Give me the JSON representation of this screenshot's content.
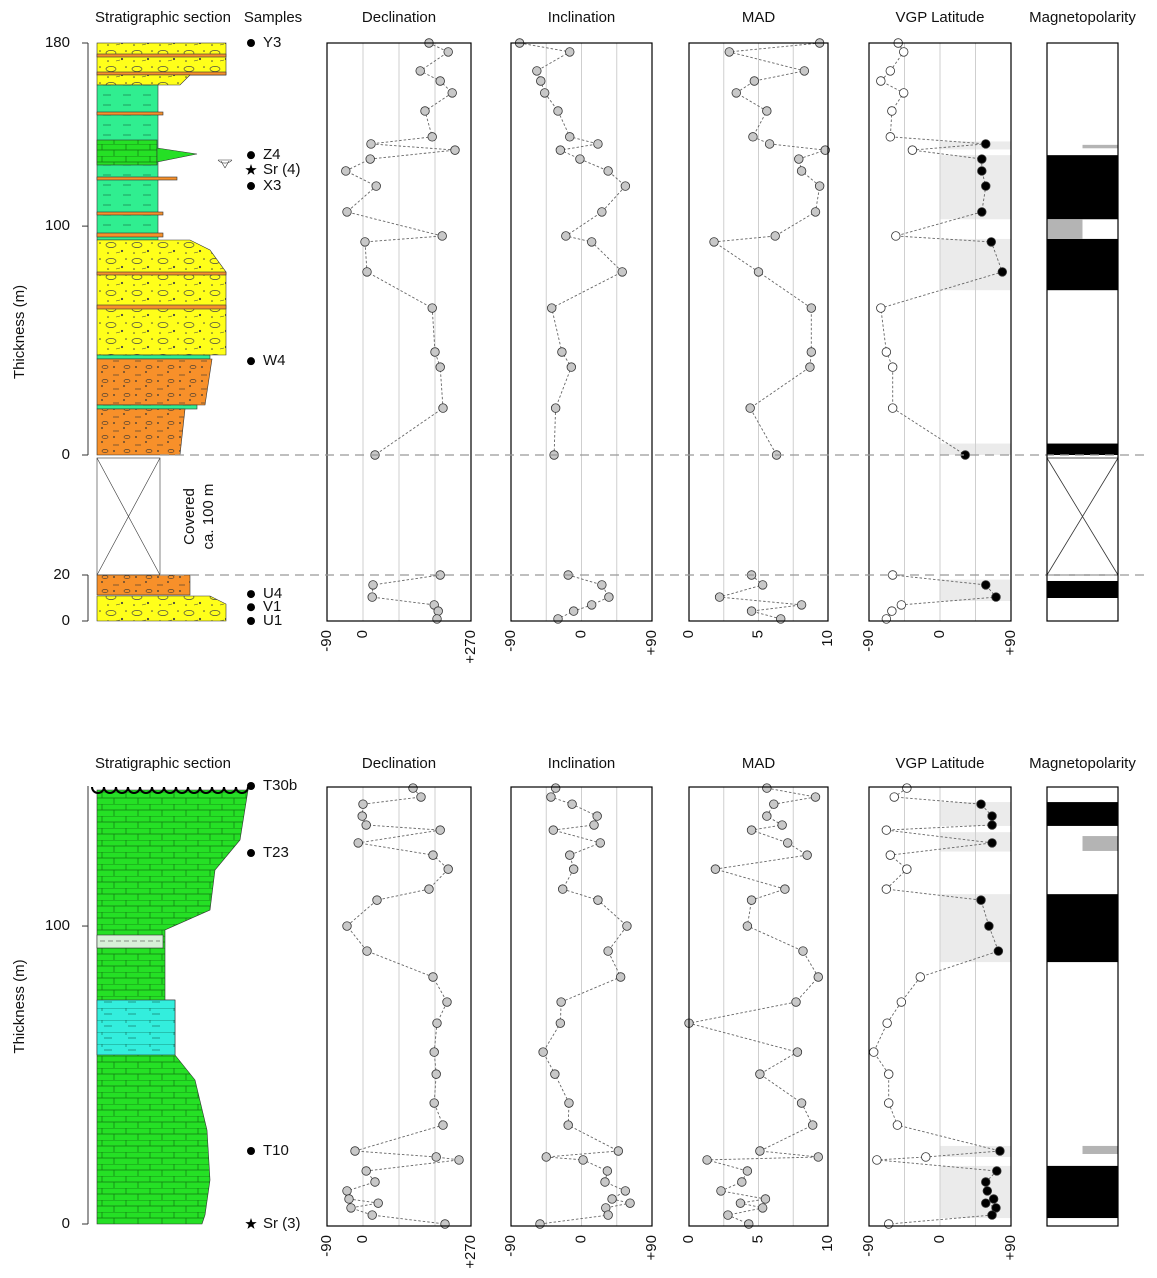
{
  "chart_data": [
    {
      "type": "paleomag",
      "section_title": "Stratigraphic section",
      "samples_title": "Samples",
      "ylabel": "Thickness (m)",
      "covered_label": [
        "Covered",
        "ca. 100 m"
      ],
      "samples": [
        {
          "name": "Y3",
          "thickness": 180,
          "segment": 0,
          "marker": "dot"
        },
        {
          "name": "Z4",
          "thickness": 131,
          "segment": 0,
          "marker": "dot"
        },
        {
          "name": "Sr (4)",
          "thickness": 124.5,
          "segment": 0,
          "marker": "star"
        },
        {
          "name": "X3",
          "thickness": 117.5,
          "segment": 0,
          "marker": "dot"
        },
        {
          "name": "W4",
          "thickness": 41,
          "segment": 0,
          "marker": "dot"
        },
        {
          "name": "U4",
          "thickness": 11.7,
          "segment": 1,
          "marker": "dot"
        },
        {
          "name": "V1",
          "thickness": 6,
          "segment": 1,
          "marker": "dot"
        },
        {
          "name": "U1",
          "thickness": 0,
          "segment": 1,
          "marker": "dot"
        }
      ],
      "columns": [
        {
          "title": "Declination",
          "xlim": [
            -90,
            270
          ],
          "xticks": [
            -90,
            0,
            {
              "value": 270,
              "label": "+270"
            }
          ],
          "xgrid": [
            0,
            90,
            180
          ],
          "marker": "gray"
        },
        {
          "title": "Inclination",
          "xlim": [
            -90,
            90
          ],
          "xticks": [
            -90,
            0,
            {
              "value": 90,
              "label": "+90"
            }
          ],
          "xgrid": [
            -45,
            0,
            45
          ],
          "marker": "gray"
        },
        {
          "title": "MAD",
          "xlim": [
            0,
            10
          ],
          "xticks": [
            0,
            5,
            10
          ],
          "xgrid": [
            2.5,
            5,
            7.5
          ],
          "marker": "gray"
        },
        {
          "title": "VGP Latitude",
          "xlim": [
            -90,
            90
          ],
          "xticks": [
            -90,
            0,
            {
              "value": 90,
              "label": "+90"
            }
          ],
          "xgrid": [
            -45,
            0,
            45
          ],
          "marker": "sign"
        }
      ],
      "polarity_title": "Magnetopolarity",
      "axes": [
        {
          "ylim": [
            0,
            180
          ],
          "yticks": [
            0,
            100,
            180
          ],
          "thickness": [
            180,
            176.1,
            167.8,
            163.4,
            158.2,
            150.3,
            139,
            135.9,
            133.2,
            129.3,
            124.1,
            117.5,
            106.2,
            95.7,
            93.1,
            80,
            64.2,
            45,
            38.4,
            20.5,
            0
          ],
          "values": [
            [
              165,
              213,
              143,
              193,
              223,
              155,
              173,
              20,
              230,
              18,
              -43,
              33,
              -40,
              198,
              5,
              10,
              173,
              180,
              193,
              200,
              30
            ],
            [
              -79,
              -15,
              -57,
              -52,
              -47,
              -30,
              -15,
              21,
              -27,
              -2,
              34,
              56,
              26,
              -20,
              13,
              52,
              -38,
              -25,
              -13,
              -33,
              -35
            ],
            [
              9.4,
              2.9,
              8.3,
              4.7,
              3.4,
              5.6,
              4.6,
              5.8,
              9.8,
              7.9,
              8.1,
              9.4,
              9.1,
              6.2,
              1.8,
              5,
              8.8,
              8.8,
              8.7,
              4.4,
              6.3
            ],
            [
              -53,
              -46,
              -63,
              -75,
              -46,
              -61,
              -63,
              58,
              -35,
              53,
              53,
              58,
              53,
              -56,
              65,
              79,
              -75,
              -68,
              -60,
              -60,
              32
            ]
          ],
          "vgp_bands": [
            [
              137,
              133.5
            ],
            [
              131,
              103
            ],
            [
              94.4,
              72
            ],
            [
              5,
              0
            ]
          ],
          "normal": [
            [
              131,
              103
            ],
            [
              94.4,
              72
            ],
            [
              5,
              0
            ]
          ],
          "uncertain": [
            {
              "range": [
                135.5,
                134
              ],
              "side": "right"
            },
            {
              "range": [
                103,
                94.4
              ],
              "side": "left"
            }
          ]
        },
        {
          "ylim": [
            0,
            20
          ],
          "yticks": [
            0,
            20
          ],
          "thickness": [
            20,
            15.7,
            10.4,
            7,
            4.3,
            0.9
          ],
          "values": [
            [
              193,
              25,
              23,
              178,
              188,
              185
            ],
            [
              -17,
              26,
              35,
              13,
              -10,
              -30
            ],
            [
              4.5,
              5.3,
              2.2,
              8.1,
              4.5,
              6.6
            ],
            [
              -60,
              58,
              71,
              -49,
              -61,
              -68
            ]
          ],
          "vgp_bands": [
            [
              18,
              8.7
            ]
          ],
          "normal": [
            [
              17.4,
              10
            ]
          ],
          "uncertain": []
        }
      ]
    },
    {
      "type": "paleomag",
      "section_title": "Stratigraphic section",
      "ylabel": "Thickness (m)",
      "samples": [
        {
          "name": "T30b",
          "thickness": 147,
          "segment": 0,
          "marker": "dot"
        },
        {
          "name": "T23",
          "thickness": 124.5,
          "segment": 0,
          "marker": "dot"
        },
        {
          "name": "T10",
          "thickness": 24.5,
          "segment": 0,
          "marker": "dot"
        },
        {
          "name": "Sr (3)",
          "thickness": 0,
          "segment": 0,
          "marker": "star"
        }
      ],
      "columns": [
        {
          "title": "Declination",
          "xlim": [
            -90,
            270
          ],
          "xticks": [
            -90,
            0,
            {
              "value": 270,
              "label": "+270"
            }
          ],
          "xgrid": [
            0,
            90,
            180
          ],
          "marker": "gray"
        },
        {
          "title": "Inclination",
          "xlim": [
            -90,
            90
          ],
          "xticks": [
            -90,
            0,
            {
              "value": 90,
              "label": "+90"
            }
          ],
          "xgrid": [
            -45,
            0,
            45
          ],
          "marker": "gray"
        },
        {
          "title": "MAD",
          "xlim": [
            0,
            10
          ],
          "xticks": [
            0,
            5,
            10
          ],
          "xgrid": [
            2.5,
            5,
            7.5
          ],
          "marker": "gray"
        },
        {
          "title": "VGP Latitude",
          "xlim": [
            -90,
            90
          ],
          "xticks": [
            -90,
            0,
            {
              "value": 90,
              "label": "+90"
            }
          ],
          "xgrid": [
            -45,
            0,
            45
          ],
          "marker": "sign"
        }
      ],
      "polarity_title": "Magnetopolarity",
      "axes": [
        {
          "ylim": [
            0,
            147
          ],
          "yticks": [
            0,
            100
          ],
          "thickness": [
            146.3,
            143.3,
            140.9,
            136.9,
            133.9,
            132.2,
            127.9,
            123.8,
            119.1,
            112.4,
            108.7,
            100,
            91.6,
            82.9,
            74.5,
            67.4,
            57.7,
            50.3,
            40.6,
            33.2,
            24.5,
            22.5,
            21.5,
            17.8,
            14.1,
            11.1,
            8.4,
            7,
            5.4,
            3,
            0
          ],
          "values": [
            [
              125,
              145,
              0,
              -2,
              8,
              193,
              -12,
              175,
              213,
              165,
              35,
              -40,
              10,
              175,
              210,
              185,
              178,
              183,
              178,
              200,
              -20,
              183,
              240,
              8,
              30,
              -40,
              -35,
              38,
              -30,
              23,
              205
            ],
            [
              -33,
              -39,
              -12,
              20,
              16,
              -36,
              24,
              -15,
              -10,
              -24,
              21,
              58,
              34,
              50,
              -26,
              -27,
              -49,
              -34,
              -16,
              -17,
              47,
              -45,
              2,
              33,
              30,
              56,
              39,
              62,
              31,
              34,
              -53
            ],
            [
              5.6,
              9.1,
              6.1,
              5.6,
              6.7,
              4.5,
              7.1,
              8.5,
              1.9,
              6.9,
              4.5,
              4.2,
              8.2,
              9.3,
              7.7,
              0,
              7.8,
              5.1,
              8.1,
              8.9,
              5.1,
              9.3,
              1.3,
              4.2,
              3.8,
              2.3,
              5.5,
              3.7,
              5.3,
              2.8,
              4.3
            ],
            [
              -42,
              -58,
              52,
              66,
              66,
              -68,
              66,
              -63,
              -42,
              -68,
              52,
              62,
              74,
              -25,
              -49,
              -67,
              -84,
              -65,
              -65,
              -54,
              76,
              -18,
              -80,
              72,
              58,
              60,
              68,
              58,
              71,
              66,
              -65
            ]
          ],
          "vgp_bands": [
            [
              141.6,
              133.6
            ],
            [
              131.5,
              125
            ],
            [
              110.7,
              87.9
            ],
            [
              26.2,
              22.5
            ],
            [
              19.5,
              2
            ]
          ],
          "normal": [
            [
              141.6,
              133.6
            ],
            [
              110.7,
              87.9
            ],
            [
              19.5,
              2
            ]
          ],
          "uncertain": [
            {
              "range": [
                130.2,
                125.2
              ],
              "side": "right"
            },
            {
              "range": [
                26.2,
                23.5
              ],
              "side": "right"
            }
          ]
        }
      ]
    }
  ]
}
